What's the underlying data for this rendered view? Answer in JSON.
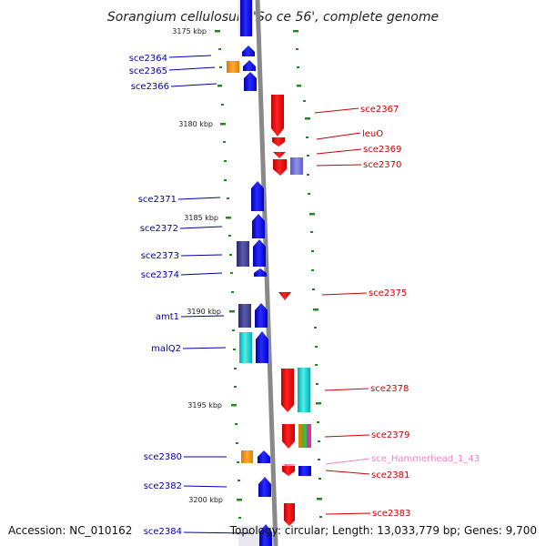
{
  "title": "Sorangium cellulosum 'So ce 56', complete genome",
  "footer": {
    "accession": "Accession: NC_010162",
    "info": "Topology: circular; Length: 13,033,779 bp; Genes: 9,700"
  },
  "scale_labels": [
    "3175 kbp",
    "3180 kbp",
    "3185 kbp",
    "3190 kbp",
    "3195 kbp",
    "3200 kbp"
  ],
  "colors": {
    "left_label": "#0000aa",
    "right_label": "#cc0000",
    "ncrna_label": "#ee88bb",
    "forward_gene": "#0000ee",
    "reverse_gene": "#ee0000",
    "backbone": "#888888",
    "tick": "#228822"
  },
  "left_labels": [
    "sce2364",
    "sce2365",
    "sce2366",
    "sce2371",
    "sce2372",
    "sce2373",
    "sce2374",
    "amt1",
    "malQ2",
    "sce2380",
    "sce2382",
    "sce2384"
  ],
  "right_labels": [
    "sce2367",
    "leuO",
    "sce2369",
    "sce2370",
    "sce2375",
    "sce2378",
    "sce2379",
    "sce_Hammerhead_1_43",
    "sce2381",
    "sce2383"
  ]
}
